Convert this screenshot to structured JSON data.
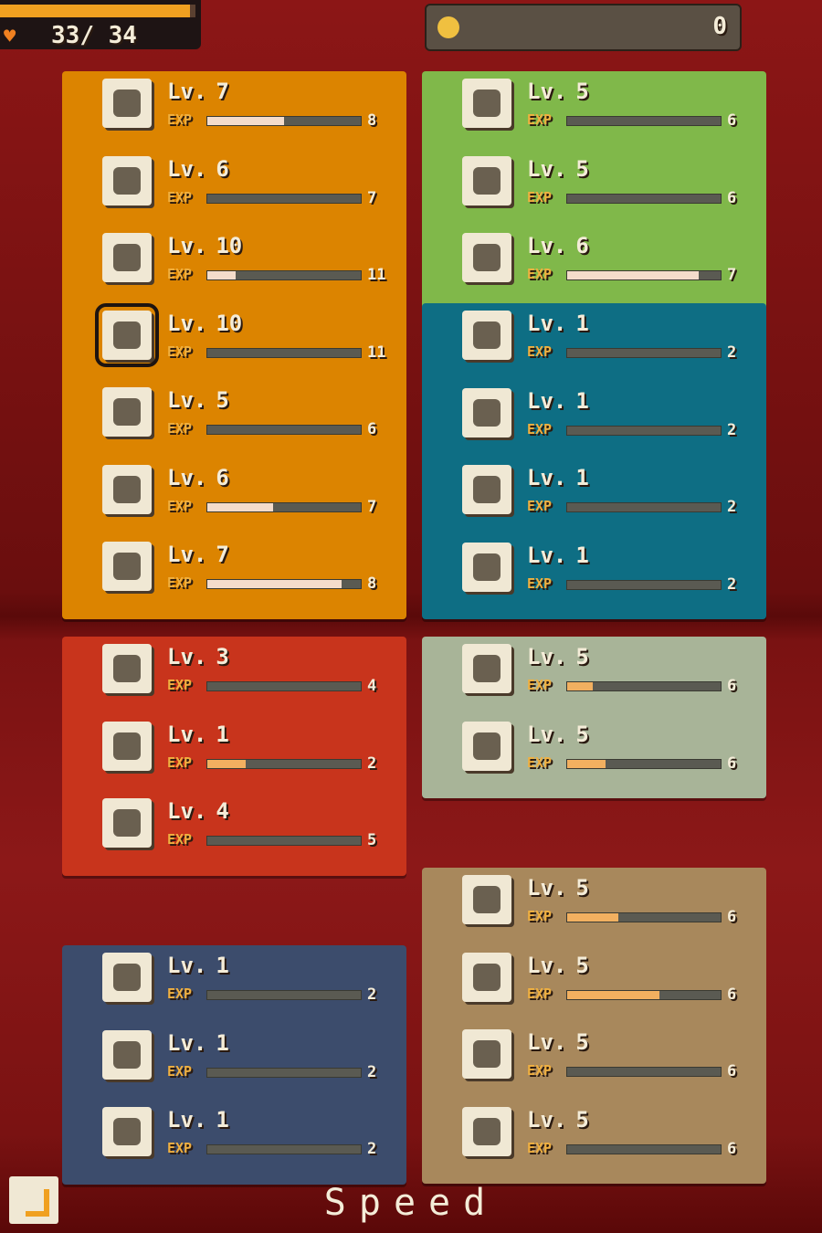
{
  "header": {
    "hp": {
      "current": 33,
      "separator": "/ ",
      "max": 34
    },
    "coins": 0
  },
  "level_prefix": "Lv.",
  "exp_label": "EXP",
  "panels": [
    {
      "color": "#dc8400",
      "fill_color": "#f4dccb",
      "items": [
        {
          "level": 7,
          "exp": 4,
          "exp_max": 8
        },
        {
          "level": 6,
          "exp": 0,
          "exp_max": 7
        },
        {
          "level": 10,
          "exp": 2,
          "exp_max": 11
        },
        {
          "level": 10,
          "exp": 0,
          "exp_max": 11
        },
        {
          "level": 5,
          "exp": 0,
          "exp_max": 6
        },
        {
          "level": 6,
          "exp": 3,
          "exp_max": 7
        },
        {
          "level": 7,
          "exp": 7,
          "exp_max": 8
        }
      ]
    },
    {
      "color": "#80b84a",
      "fill_color": "#f4dccb",
      "items": [
        {
          "level": 5,
          "exp": 0,
          "exp_max": 6
        },
        {
          "level": 5,
          "exp": 0,
          "exp_max": 6
        },
        {
          "level": 6,
          "exp": 6,
          "exp_max": 7
        }
      ]
    },
    {
      "color": "#0e6e84",
      "fill_color": "#f4dccb",
      "items": [
        {
          "level": 1,
          "exp": 0,
          "exp_max": 2
        },
        {
          "level": 1,
          "exp": 0,
          "exp_max": 2
        },
        {
          "level": 1,
          "exp": 0,
          "exp_max": 2
        },
        {
          "level": 1,
          "exp": 0,
          "exp_max": 2
        }
      ]
    },
    {
      "color": "#c8341c",
      "fill_color": "#f2b060",
      "items": [
        {
          "level": 3,
          "exp": 0,
          "exp_max": 4
        },
        {
          "level": 1,
          "exp": 0.5,
          "exp_max": 2
        },
        {
          "level": 4,
          "exp": 0,
          "exp_max": 5
        }
      ]
    },
    {
      "color": "#a8b498",
      "fill_color": "#f2b060",
      "items": [
        {
          "level": 5,
          "exp": 1,
          "exp_max": 6
        },
        {
          "level": 5,
          "exp": 1.5,
          "exp_max": 6
        }
      ]
    },
    {
      "color": "#3c4c6c",
      "fill_color": "#f2b060",
      "items": [
        {
          "level": 1,
          "exp": 0,
          "exp_max": 2
        },
        {
          "level": 1,
          "exp": 0,
          "exp_max": 2
        },
        {
          "level": 1,
          "exp": 0,
          "exp_max": 2
        }
      ]
    },
    {
      "color": "#a8885c",
      "fill_color": "#f2b060",
      "items": [
        {
          "level": 5,
          "exp": 2,
          "exp_max": 6
        },
        {
          "level": 5,
          "exp": 3.6,
          "exp_max": 6
        },
        {
          "level": 5,
          "exp": 0,
          "exp_max": 6
        },
        {
          "level": 5,
          "exp": 0,
          "exp_max": 6
        }
      ]
    }
  ],
  "footer": {
    "mode": "Speed"
  }
}
